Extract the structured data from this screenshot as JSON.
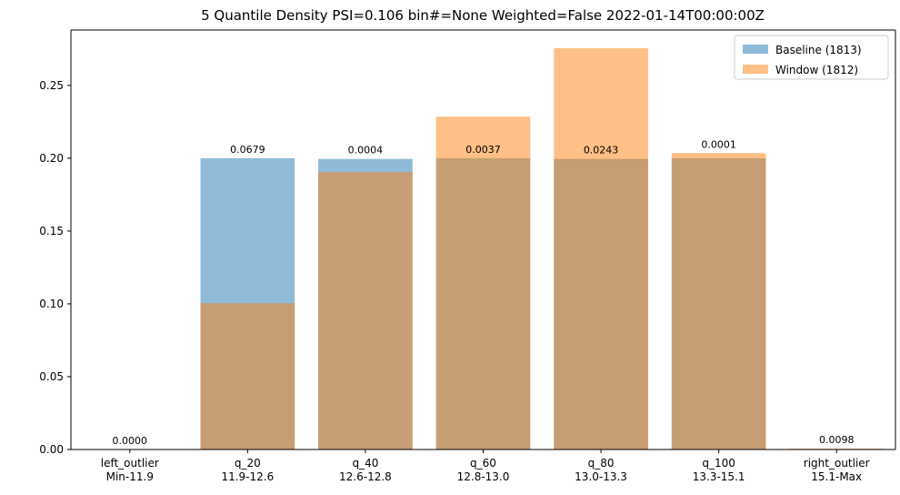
{
  "chart_data": {
    "type": "bar",
    "title": "5 Quantile Density PSI=0.106 bin#=None Weighted=False 2022-01-14T00:00:00Z",
    "xlabel": "",
    "ylabel": "",
    "ylim": [
      0,
      0.288
    ],
    "yticks": [
      "0.00",
      "0.05",
      "0.10",
      "0.15",
      "0.20",
      "0.25"
    ],
    "ytick_values": [
      0,
      0.05,
      0.1,
      0.15,
      0.2,
      0.25
    ],
    "categories": [
      [
        "left_outlier",
        "Min-11.9"
      ],
      [
        "q_20",
        "11.9-12.6"
      ],
      [
        "q_40",
        "12.6-12.8"
      ],
      [
        "q_60",
        "12.8-13.0"
      ],
      [
        "q_80",
        "13.0-13.3"
      ],
      [
        "q_100",
        "13.3-15.1"
      ],
      [
        "right_outlier",
        "15.1-Max"
      ]
    ],
    "series": [
      {
        "name": "Baseline (1813)",
        "color": "#1f77b4",
        "opacity": 0.5,
        "values": [
          0.0,
          0.2,
          0.1995,
          0.2,
          0.1995,
          0.2,
          0.0
        ]
      },
      {
        "name": "Window (1812)",
        "color": "#ff7f0e",
        "opacity": 0.5,
        "values": [
          0.0,
          0.1005,
          0.1905,
          0.2285,
          0.2755,
          0.2035,
          0.0006
        ]
      }
    ],
    "bar_labels": [
      "0.0000",
      "0.0679",
      "0.0004",
      "0.0037",
      "0.0243",
      "0.0001",
      "0.0098"
    ],
    "legend_position": "top-right",
    "grid": false
  }
}
